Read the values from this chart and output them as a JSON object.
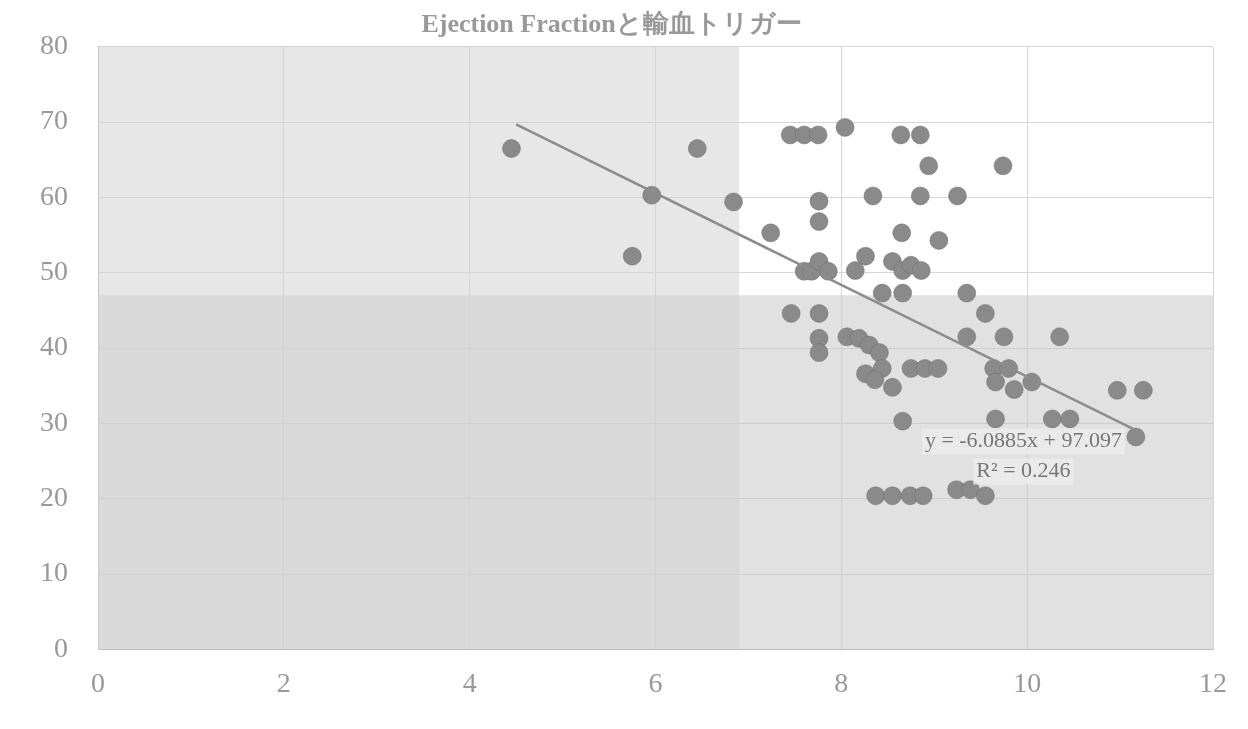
{
  "chart_data": {
    "type": "scatter",
    "title": "Ejection Fractionと輸血トリガー",
    "xlim": [
      0,
      12
    ],
    "xticks": [
      0,
      2,
      4,
      6,
      8,
      10,
      12
    ],
    "ylim": [
      0,
      80
    ],
    "yticks": [
      0,
      10,
      20,
      30,
      40,
      50,
      60,
      70,
      80
    ],
    "grid": true,
    "legend": false,
    "bands": [
      {
        "axis": "y",
        "from": 0,
        "to": 47,
        "color": "#c8c8c8"
      },
      {
        "axis": "x",
        "from": 0,
        "to": 6.9,
        "color": "#d4d4d4"
      }
    ],
    "annotations": [
      "y = -6.0885x + 97.097",
      "R² = 0.246"
    ],
    "series": [
      {
        "marker": "circle",
        "color": "#8a8a8a",
        "x": [
          4.45,
          6.45,
          5.96,
          6.84,
          7.24,
          5.75,
          7.45,
          7.6,
          7.75,
          8.04,
          7.76,
          7.76,
          7.6,
          7.68,
          7.76,
          7.86,
          7.46,
          7.76,
          7.76,
          7.76,
          8.64,
          8.85,
          8.94,
          9.74,
          8.34,
          8.85,
          9.25,
          8.65,
          9.05,
          8.26,
          8.15,
          8.55,
          8.66,
          8.75,
          8.86,
          8.44,
          8.66,
          9.35,
          8.06,
          8.19,
          8.3,
          8.41,
          8.26,
          8.44,
          8.36,
          8.55,
          8.75,
          8.9,
          9.04,
          9.55,
          9.35,
          9.75,
          10.35,
          9.64,
          9.8,
          9.66,
          9.86,
          10.05,
          10.97,
          11.25,
          8.66,
          9.66,
          10.27,
          10.46,
          11.17,
          8.37,
          8.55,
          8.74,
          8.88,
          9.24,
          9.39,
          9.55
        ],
        "values": [
          66.5,
          66.5,
          60.3,
          59.4,
          55.3,
          52.2,
          68.3,
          68.3,
          68.3,
          69.3,
          59.5,
          56.8,
          50.2,
          50.2,
          51.5,
          50.2,
          44.6,
          44.6,
          41.3,
          39.4,
          68.3,
          68.3,
          64.2,
          64.2,
          60.2,
          60.2,
          60.2,
          55.3,
          54.3,
          52.2,
          50.3,
          51.5,
          50.3,
          51,
          50.3,
          47.3,
          47.3,
          47.3,
          41.5,
          41.3,
          40.4,
          39.4,
          36.6,
          37.3,
          35.8,
          34.8,
          37.3,
          37.3,
          37.3,
          44.6,
          41.5,
          41.5,
          41.5,
          37.3,
          37.3,
          35.5,
          34.5,
          35.5,
          34.4,
          34.4,
          30.3,
          30.6,
          30.6,
          30.6,
          28.2,
          20.4,
          20.4,
          20.4,
          20.4,
          21.2,
          21.2,
          20.4
        ]
      },
      {
        "type": "line",
        "color": "#8c8c8c",
        "x": [
          4.5,
          11.2
        ],
        "values": [
          69.7,
          28.9
        ]
      }
    ]
  }
}
